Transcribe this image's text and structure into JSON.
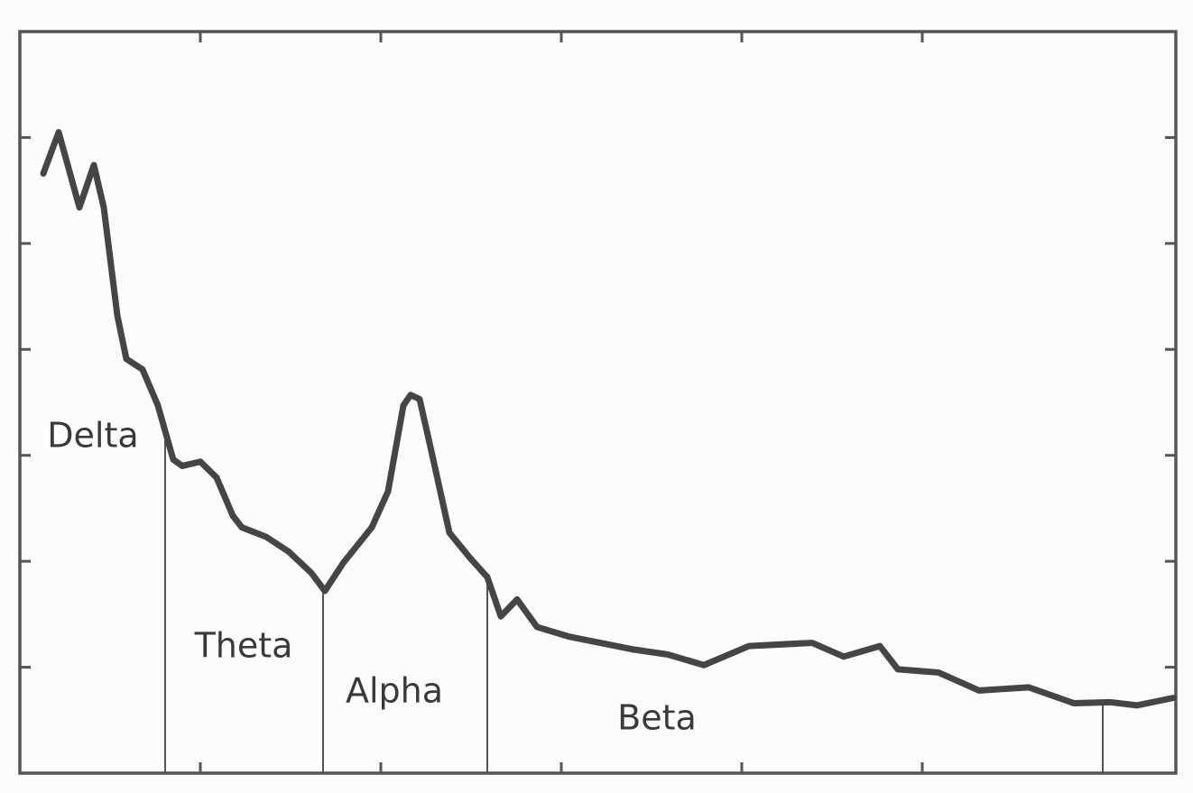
{
  "chart_data": {
    "type": "line",
    "x": [
      0.13,
      0.215,
      0.33,
      0.41,
      0.465,
      0.54,
      0.59,
      0.68,
      0.765,
      0.85,
      0.9,
      1.0,
      1.09,
      1.18,
      1.23,
      1.365,
      1.49,
      1.615,
      1.69,
      1.79,
      1.95,
      2.04,
      2.125,
      2.165,
      2.215,
      2.28,
      2.38,
      2.49,
      2.59,
      2.665,
      2.755,
      2.865,
      3.04,
      3.39,
      3.59,
      3.79,
      4.04,
      4.39,
      4.565,
      4.765,
      4.865,
      5.09,
      5.315,
      5.59,
      5.84,
      6.04,
      6.19,
      6.39
    ],
    "series": [
      {
        "color": "#454545",
        "values": [
          5.66,
          6.05,
          5.34,
          5.74,
          5.34,
          4.32,
          3.91,
          3.81,
          3.47,
          2.96,
          2.9,
          2.94,
          2.79,
          2.43,
          2.32,
          2.23,
          2.09,
          1.89,
          1.72,
          1.98,
          2.32,
          2.66,
          3.47,
          3.57,
          3.53,
          3.04,
          2.27,
          2.04,
          1.85,
          1.48,
          1.64,
          1.38,
          1.29,
          1.17,
          1.12,
          1.02,
          1.2,
          1.23,
          1.1,
          1.2,
          0.98,
          0.95,
          0.78,
          0.81,
          0.66,
          0.67,
          0.64,
          0.71
        ]
      }
    ],
    "xlim": [
      0,
      6.405
    ],
    "ylim": [
      0,
      7
    ],
    "xticks": [
      1,
      2,
      3,
      4,
      5
    ],
    "yticks": [
      1,
      2,
      3,
      4,
      5,
      6
    ],
    "band_edges": [
      0.805,
      1.68,
      2.59,
      6.0
    ],
    "band_labels": [
      "Delta",
      "Theta",
      "Alpha",
      "Beta"
    ]
  }
}
